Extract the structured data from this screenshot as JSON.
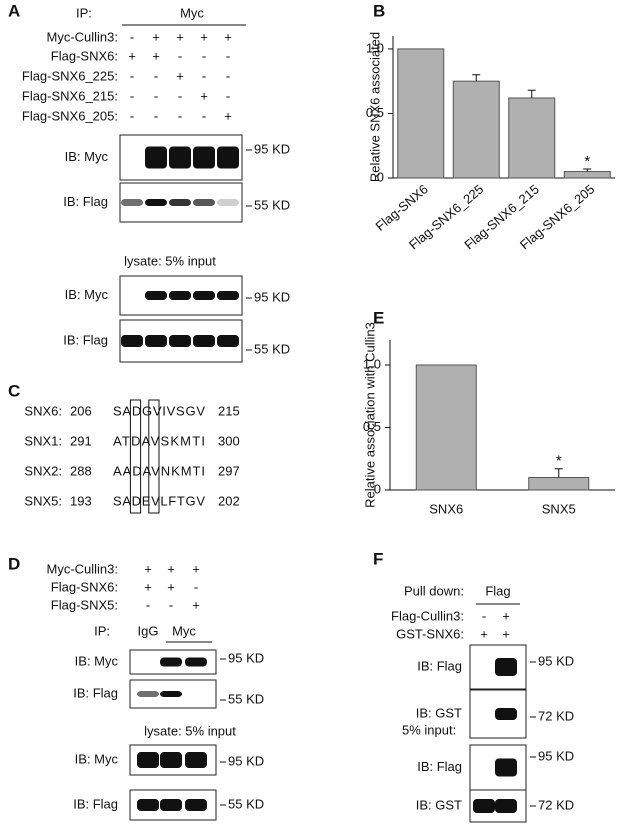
{
  "panel_labels": [
    "A",
    "B",
    "C",
    "D",
    "E",
    "F"
  ],
  "panel_a": {
    "ip_label": "IP:",
    "ip": "Myc",
    "rows": [
      {
        "label": "Myc-Cullin3:",
        "signs": [
          "-",
          "+",
          "+",
          "+",
          "+"
        ]
      },
      {
        "label": "Flag-SNX6:",
        "signs": [
          "+",
          "+",
          "-",
          "-",
          "-"
        ]
      },
      {
        "label": "Flag-SNX6_225:",
        "signs": [
          "-",
          "-",
          "+",
          "-",
          "-"
        ]
      },
      {
        "label": "Flag-SNX6_215:",
        "signs": [
          "-",
          "-",
          "-",
          "+",
          "-"
        ]
      },
      {
        "label": "Flag-SNX6_205:",
        "signs": [
          "-",
          "-",
          "-",
          "-",
          "+"
        ]
      }
    ],
    "blots": [
      {
        "label": "IB: Myc",
        "marker": "95 KD"
      },
      {
        "label": "IB: Flag",
        "marker": "55 KD"
      },
      {
        "label": "IB: Myc",
        "marker": "95 KD"
      },
      {
        "label": "IB: Flag",
        "marker": "55 KD"
      }
    ],
    "lysate_label": "lysate: 5% input"
  },
  "panel_c": {
    "rows": [
      {
        "name": "SNX6:",
        "start": 206,
        "sequence": "SADGVIVSGV",
        "end": 215
      },
      {
        "name": "SNX1:",
        "start": 291,
        "sequence": "ATDAVSKMTI",
        "end": 300
      },
      {
        "name": "SNX2:",
        "start": 288,
        "sequence": "AADAVNKMTI",
        "end": 297
      },
      {
        "name": "SNX5:",
        "start": 193,
        "sequence": "SADEVLFTGV",
        "end": 202
      }
    ]
  },
  "panel_d": {
    "rows": [
      {
        "label": "Myc-Cullin3:",
        "signs": [
          "+",
          "+",
          "+"
        ]
      },
      {
        "label": "Flag-SNX6:",
        "signs": [
          "+",
          "+",
          "-"
        ]
      },
      {
        "label": "Flag-SNX5:",
        "signs": [
          "-",
          "-",
          "+"
        ]
      }
    ],
    "ip_label": "IP:",
    "ip_lanes": [
      "IgG",
      "Myc"
    ],
    "blots": [
      {
        "label": "IB: Myc",
        "marker": "95 KD"
      },
      {
        "label": "IB: Flag",
        "marker": "55 KD"
      },
      {
        "label": "IB: Myc",
        "marker": "95 KD"
      },
      {
        "label": "IB: Flag",
        "marker": "55 KD"
      }
    ],
    "lysate_label": "lysate: 5% input"
  },
  "panel_f": {
    "pulldown_label": "Pull down:",
    "pulldown": "Flag",
    "rows": [
      {
        "label": "Flag-Cullin3:",
        "signs": [
          "-",
          "+"
        ]
      },
      {
        "label": "GST-SNX6:",
        "signs": [
          "+",
          "+"
        ]
      }
    ],
    "blots": [
      {
        "label": "IB: Flag",
        "marker": "95 KD"
      },
      {
        "label": "IB: GST",
        "marker": "72 KD"
      },
      {
        "label": "IB: Flag",
        "marker": "95 KD"
      },
      {
        "label": "IB: GST",
        "marker": "72 KD"
      }
    ],
    "input_label": "5% input:"
  },
  "chart_data": [
    {
      "type": "bar",
      "y_label": "Relative SNX6 associated",
      "categories": [
        "Flag-SNX6",
        "Flag-SNX6_225",
        "Flag-SNX6_215",
        "Flag-SNX6_205"
      ],
      "values": [
        1,
        0.75,
        0.62,
        0.05
      ],
      "errors": [
        null,
        0.05,
        0.06,
        0.02
      ],
      "significance": [
        null,
        null,
        null,
        "*"
      ],
      "color": "#b0b0b0",
      "ylim": [
        0,
        1.1
      ],
      "yticks": [
        0,
        0.5,
        {
          "value": 1,
          "label": "1.0"
        }
      ]
    },
    {
      "type": "bar",
      "y_label": "Relative association with Cullin3",
      "categories": [
        "SNX6",
        "SNX5"
      ],
      "values": [
        1,
        0.1
      ],
      "errors": [
        null,
        0.07
      ],
      "significance": [
        null,
        "*"
      ],
      "color": "#b0b0b0",
      "ylim": [
        0,
        1.2
      ],
      "yticks": [
        0,
        0.5,
        {
          "value": 1,
          "label": "1.0"
        }
      ]
    }
  ]
}
